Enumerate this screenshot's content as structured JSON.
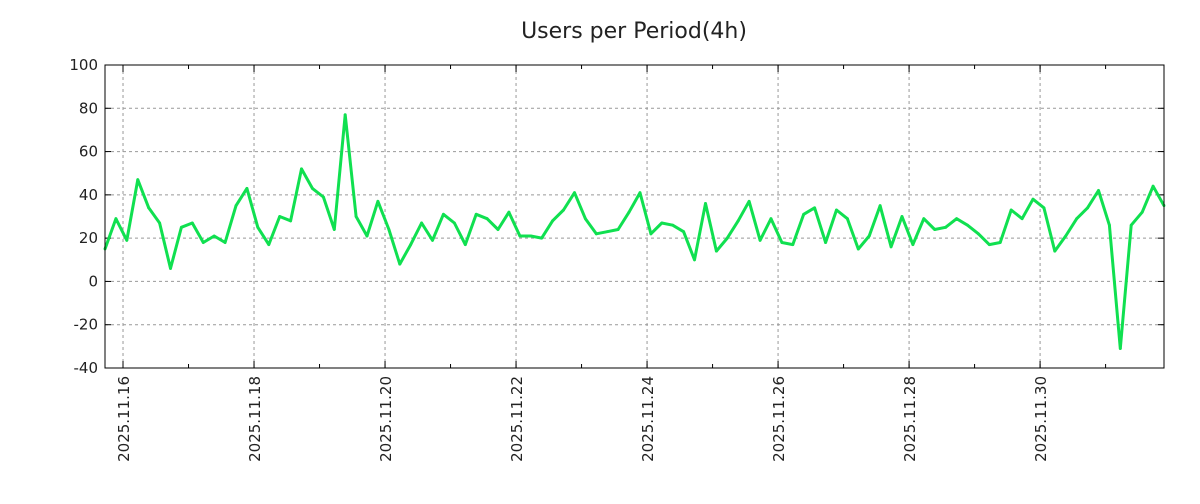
{
  "chart_data": {
    "type": "line",
    "title": "Users per Period(4h)",
    "xlabel": "",
    "ylabel": "",
    "ylim": [
      -40,
      100
    ],
    "yticks": [
      -40,
      -20,
      0,
      20,
      40,
      60,
      80,
      100
    ],
    "xtick_labels": [
      "2025.11.16",
      "2025.11.18",
      "2025.11.20",
      "2025.11.22",
      "2025.11.24",
      "2025.11.26",
      "2025.11.28",
      "2025.11.30"
    ],
    "x_unit": "hours since 2025.11.16 00:00",
    "xlim_hours": [
      -6.6,
      381.4
    ],
    "interval_hours": 4,
    "grid": true,
    "line_color": "#10e050",
    "values": [
      15,
      29,
      19,
      47,
      34,
      27,
      6,
      25,
      27,
      18,
      21,
      18,
      35,
      43,
      25,
      17,
      30,
      28,
      52,
      43,
      39,
      24,
      77,
      30,
      21,
      37,
      24,
      8,
      17,
      27,
      19,
      31,
      27,
      17,
      31,
      29,
      24,
      32,
      21,
      21,
      20,
      28,
      33,
      41,
      29,
      22,
      23,
      24,
      32,
      41,
      22,
      27,
      26,
      23,
      10,
      36,
      14,
      20,
      28,
      37,
      19,
      29,
      18,
      17,
      31,
      34,
      18,
      33,
      29,
      15,
      21,
      35,
      16,
      30,
      17,
      29,
      24,
      25,
      29,
      26,
      22,
      17,
      18,
      33,
      29,
      38,
      34,
      14,
      21,
      29,
      34,
      42,
      26,
      -31,
      26,
      32,
      44,
      35
    ]
  }
}
